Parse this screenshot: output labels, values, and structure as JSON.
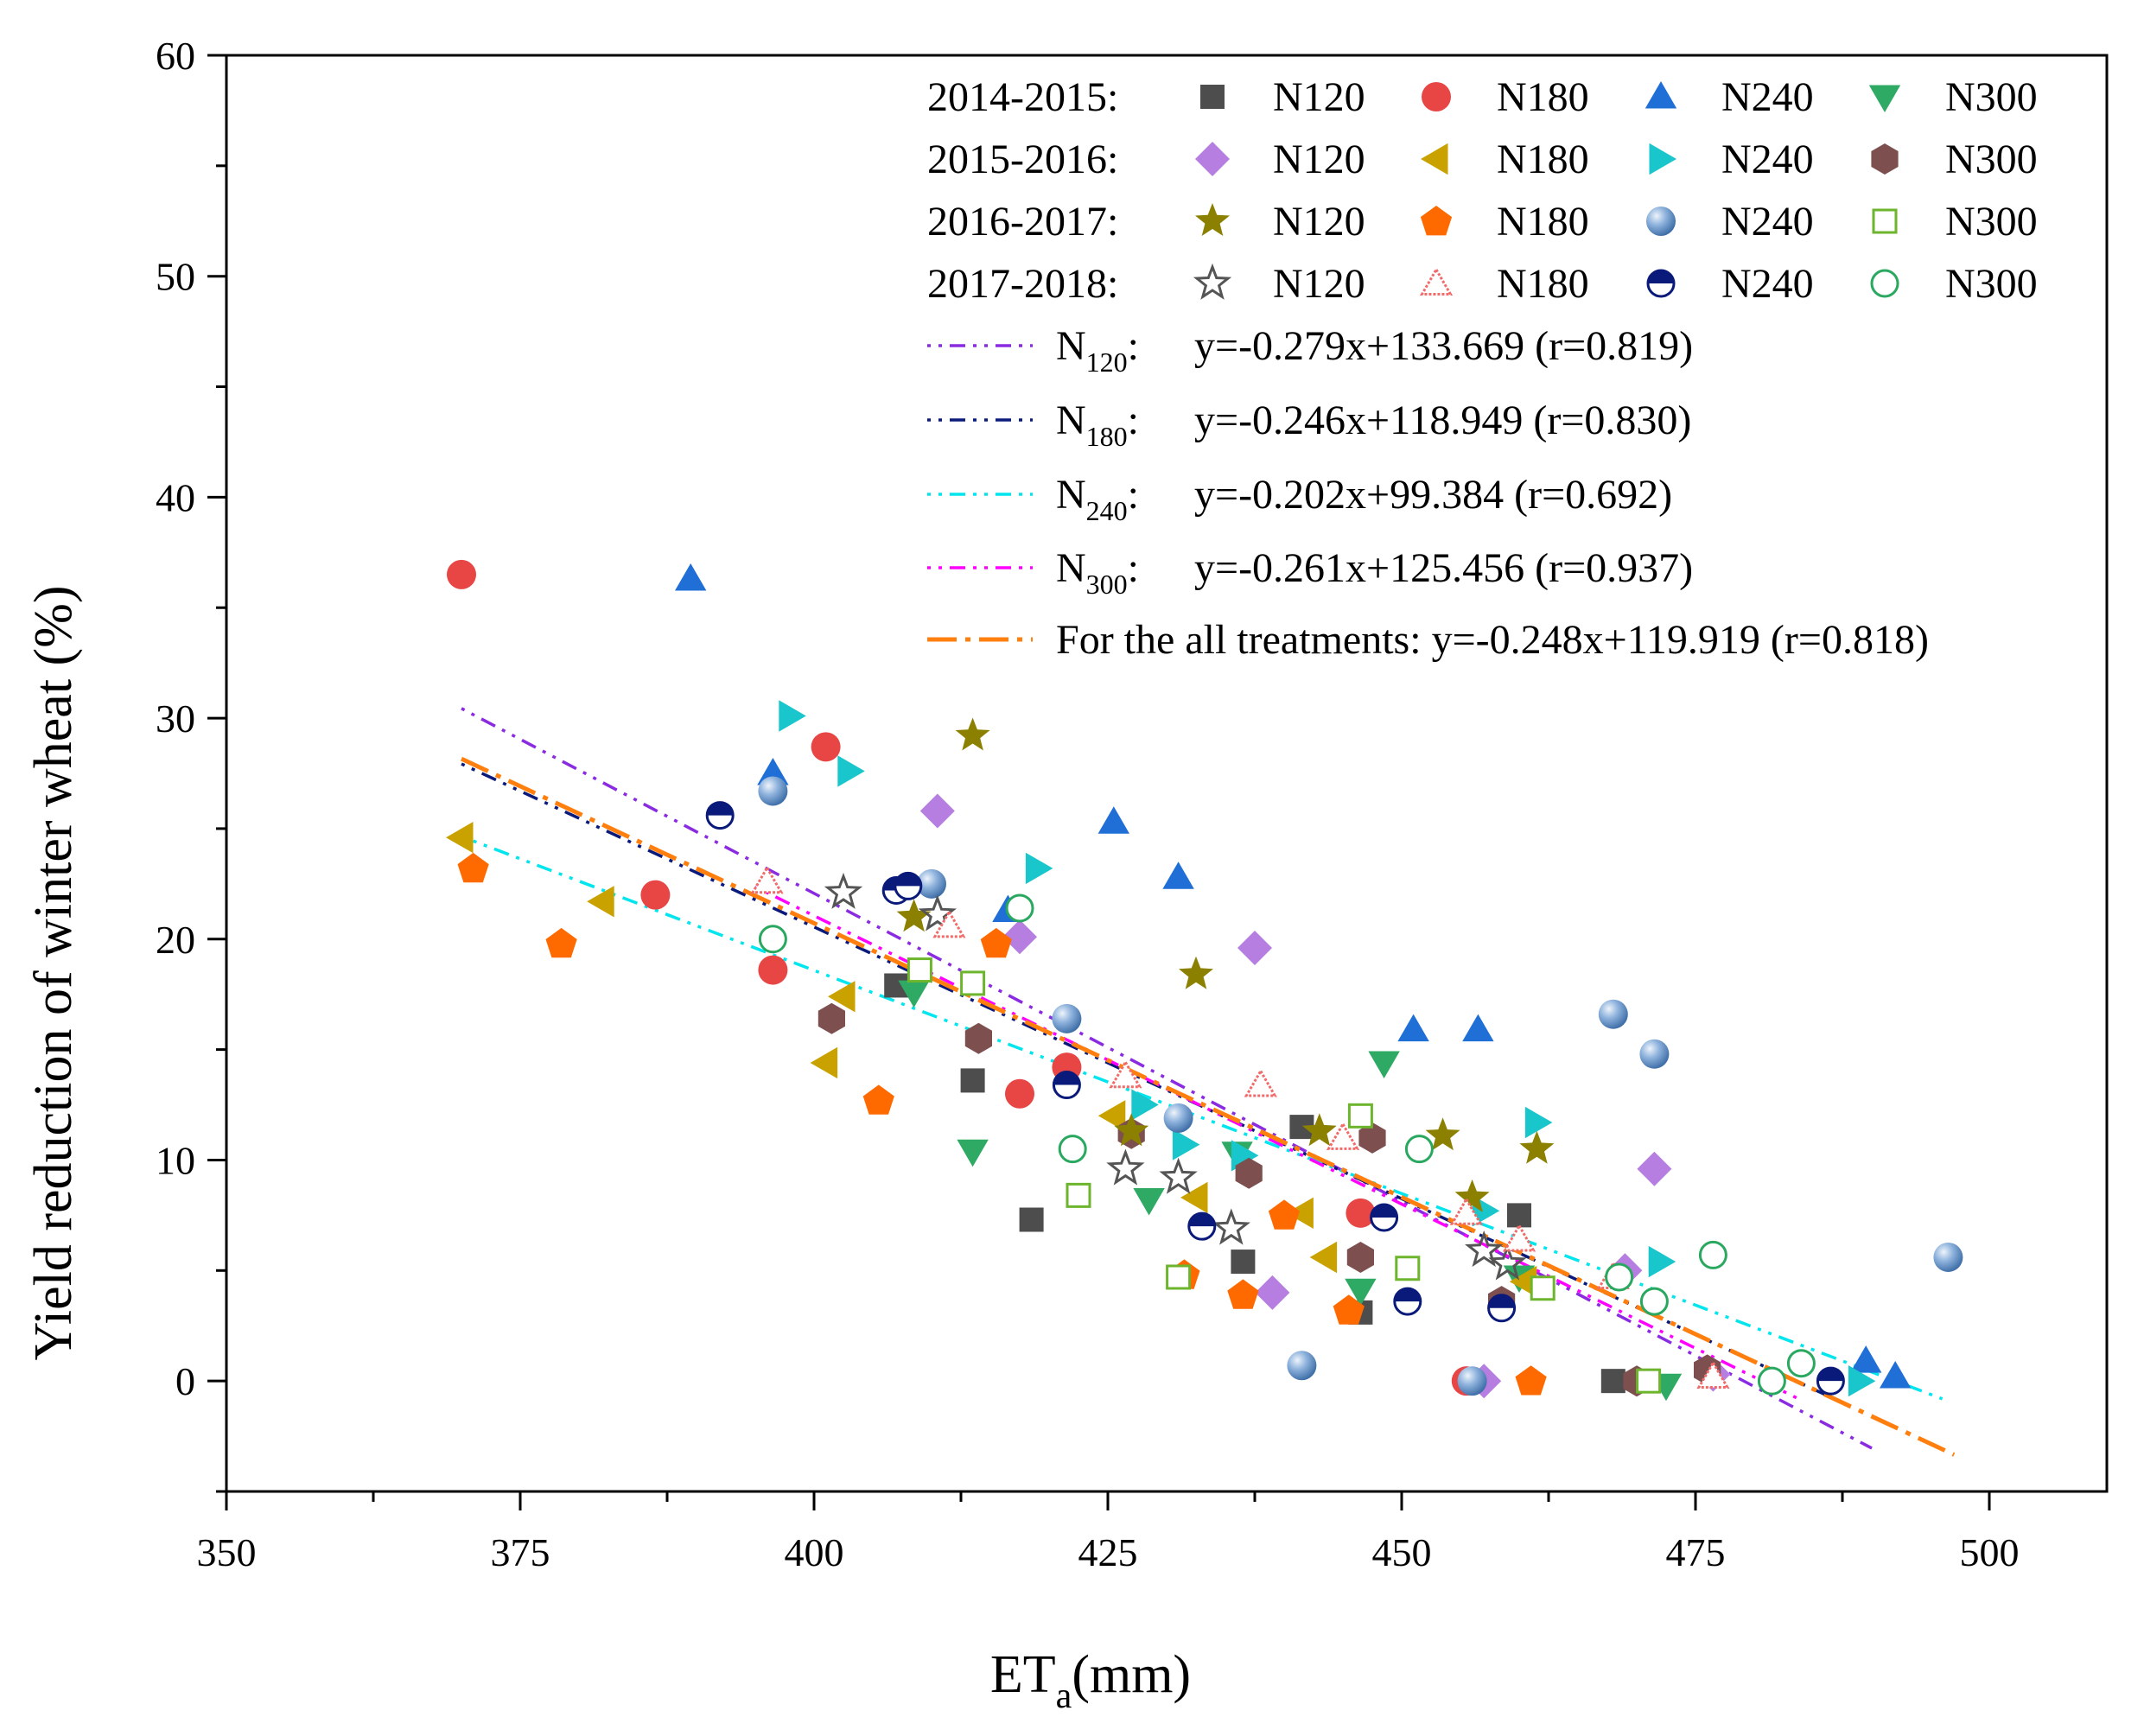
{
  "chart_data": {
    "type": "scatter",
    "title": "",
    "xlabel": {
      "main": "ET",
      "sub": "a",
      "rest": "(mm)"
    },
    "ylabel": "Yield reduction of winter wheat (%)",
    "xlim": [
      350,
      510
    ],
    "ylim": [
      -5,
      60
    ],
    "xticks": [
      350,
      375,
      400,
      425,
      450,
      475,
      500
    ],
    "yticks": [
      0,
      10,
      20,
      30,
      40,
      50,
      60
    ],
    "legend_position": "top-right",
    "legend_rows": [
      {
        "label": "2014-2015:",
        "entries": [
          {
            "key": "s1415_120",
            "label": "N120"
          },
          {
            "key": "s1415_180",
            "label": "N180"
          },
          {
            "key": "s1415_240",
            "label": "N240"
          },
          {
            "key": "s1415_300",
            "label": "N300"
          }
        ]
      },
      {
        "label": "2015-2016:",
        "entries": [
          {
            "key": "s1516_120",
            "label": "N120"
          },
          {
            "key": "s1516_180",
            "label": "N180"
          },
          {
            "key": "s1516_240",
            "label": "N240"
          },
          {
            "key": "s1516_300",
            "label": "N300"
          }
        ]
      },
      {
        "label": "2016-2017:",
        "entries": [
          {
            "key": "s1617_120",
            "label": "N120"
          },
          {
            "key": "s1617_180",
            "label": "N180"
          },
          {
            "key": "s1617_240",
            "label": "N240"
          },
          {
            "key": "s1617_300",
            "label": "N300"
          }
        ]
      },
      {
        "label": "2017-2018:",
        "entries": [
          {
            "key": "s1718_120",
            "label": "N120"
          },
          {
            "key": "s1718_180",
            "label": "N180"
          },
          {
            "key": "s1718_240",
            "label": "N240"
          },
          {
            "key": "s1718_300",
            "label": "N300"
          }
        ]
      }
    ],
    "series": [
      {
        "key": "s1415_120",
        "name": "2014-2015 N120",
        "marker": "square",
        "color": "#4d4d4d",
        "points": [
          [
            407,
            17.9
          ],
          [
            413.5,
            13.6
          ],
          [
            418.5,
            7.3
          ],
          [
            436.5,
            5.4
          ],
          [
            441.5,
            11.5
          ],
          [
            446.5,
            3.1
          ],
          [
            460,
            7.5
          ],
          [
            468,
            0
          ]
        ]
      },
      {
        "key": "s1415_180",
        "name": "2014-2015 N180",
        "marker": "circle",
        "color": "#e84545",
        "points": [
          [
            370,
            36.5
          ],
          [
            386.5,
            22
          ],
          [
            396.5,
            18.6
          ],
          [
            401,
            28.7
          ],
          [
            417.5,
            13
          ],
          [
            421.5,
            14.2
          ],
          [
            446.5,
            7.6
          ],
          [
            455.5,
            0
          ]
        ]
      },
      {
        "key": "s1415_240",
        "name": "2014-2015 N240",
        "marker": "triangle-up",
        "color": "#1f6fd6",
        "points": [
          [
            389.5,
            36.3
          ],
          [
            396.5,
            27.5
          ],
          [
            416.5,
            21.3
          ],
          [
            425.5,
            25.3
          ],
          [
            431,
            22.8
          ],
          [
            451,
            15.9
          ],
          [
            456.5,
            15.9
          ],
          [
            489.5,
            0.9
          ],
          [
            492,
            0.2
          ]
        ]
      },
      {
        "key": "s1415_300",
        "name": "2014-2015 N300",
        "marker": "triangle-down",
        "color": "#2eaa64",
        "points": [
          [
            408.5,
            17.6
          ],
          [
            413.5,
            10.4
          ],
          [
            428.5,
            8.2
          ],
          [
            436,
            10.3
          ],
          [
            446.5,
            4.1
          ],
          [
            448.5,
            14.4
          ],
          [
            460,
            4.7
          ],
          [
            472.5,
            -0.2
          ]
        ]
      },
      {
        "key": "s1516_120",
        "name": "2015-2016 N120",
        "marker": "diamond",
        "color": "#b57ee0",
        "points": [
          [
            410.5,
            25.8
          ],
          [
            417.5,
            20.1
          ],
          [
            437.5,
            19.6
          ],
          [
            439,
            4
          ],
          [
            457,
            0
          ],
          [
            469,
            5
          ],
          [
            471.5,
            9.6
          ],
          [
            476.5,
            0.3
          ]
        ]
      },
      {
        "key": "s1516_180",
        "name": "2015-2016 N180",
        "marker": "triangle-left",
        "color": "#c9a200",
        "points": [
          [
            370,
            24.6
          ],
          [
            382,
            21.7
          ],
          [
            401,
            14.4
          ],
          [
            402.5,
            17.4
          ],
          [
            425.5,
            12
          ],
          [
            432.5,
            8.3
          ],
          [
            441.5,
            7.6
          ],
          [
            443.5,
            5.6
          ],
          [
            460.5,
            4.5
          ]
        ]
      },
      {
        "key": "s1516_240",
        "name": "2015-2016 N240",
        "marker": "triangle-right",
        "color": "#18c6cc",
        "points": [
          [
            398,
            30.1
          ],
          [
            403,
            27.6
          ],
          [
            419,
            23.2
          ],
          [
            428,
            12.5
          ],
          [
            431.5,
            10.7
          ],
          [
            436.5,
            10.2
          ],
          [
            457,
            7.7
          ],
          [
            461.5,
            11.7
          ],
          [
            472,
            5.4
          ],
          [
            489,
            0
          ]
        ]
      },
      {
        "key": "s1516_300",
        "name": "2015-2016 N300",
        "marker": "hexagon",
        "color": "#7d4f4f",
        "points": [
          [
            401.5,
            16.4
          ],
          [
            414,
            15.5
          ],
          [
            427,
            11.2
          ],
          [
            437,
            9.4
          ],
          [
            446.5,
            5.6
          ],
          [
            447.5,
            11
          ],
          [
            458.5,
            3.6
          ],
          [
            470,
            0
          ],
          [
            476,
            0.5
          ]
        ]
      },
      {
        "key": "s1617_120",
        "name": "2016-2017 N120",
        "marker": "star",
        "color": "#8b8000",
        "points": [
          [
            408.5,
            21
          ],
          [
            413.5,
            29.2
          ],
          [
            427,
            11.3
          ],
          [
            432.5,
            18.4
          ],
          [
            443,
            11.3
          ],
          [
            453.5,
            11.1
          ],
          [
            456,
            8.3
          ],
          [
            461.5,
            10.5
          ]
        ]
      },
      {
        "key": "s1617_180",
        "name": "2016-2017 N180",
        "marker": "pentagon",
        "color": "#ff6a00",
        "points": [
          [
            371,
            23.2
          ],
          [
            378.5,
            19.8
          ],
          [
            405.5,
            12.7
          ],
          [
            415.5,
            19.8
          ],
          [
            431.5,
            4.8
          ],
          [
            436.5,
            3.9
          ],
          [
            440,
            7.5
          ],
          [
            445.5,
            3.2
          ],
          [
            461,
            0
          ]
        ]
      },
      {
        "key": "s1617_240",
        "name": "2016-2017 N240",
        "marker": "sphere",
        "color": "#7fa8d8",
        "points": [
          [
            396.5,
            26.7
          ],
          [
            410,
            22.5
          ],
          [
            421.5,
            16.4
          ],
          [
            431,
            11.9
          ],
          [
            441.5,
            0.7
          ],
          [
            456,
            0
          ],
          [
            468,
            16.6
          ],
          [
            471.5,
            14.8
          ],
          [
            496.5,
            5.6
          ]
        ]
      },
      {
        "key": "s1617_300",
        "name": "2016-2017 N300",
        "marker": "open-square",
        "color": "#6cb52d",
        "points": [
          [
            409,
            18.6
          ],
          [
            413.5,
            18
          ],
          [
            422.5,
            8.4
          ],
          [
            431,
            4.7
          ],
          [
            446.5,
            12
          ],
          [
            450.5,
            5.1
          ],
          [
            462,
            4.2
          ],
          [
            471,
            0
          ]
        ]
      },
      {
        "key": "s1718_120",
        "name": "2017-2018 N120",
        "marker": "open-star",
        "color": "#555555",
        "points": [
          [
            402.5,
            22.1
          ],
          [
            410.5,
            21.1
          ],
          [
            426.5,
            9.6
          ],
          [
            431,
            9.2
          ],
          [
            435.5,
            6.9
          ],
          [
            457,
            5.9
          ],
          [
            459,
            5.3
          ]
        ]
      },
      {
        "key": "s1718_180",
        "name": "2017-2018 N180",
        "marker": "open-triangle",
        "color": "#f26b6b",
        "points": [
          [
            396,
            22.6
          ],
          [
            411.5,
            20.6
          ],
          [
            426.5,
            13.8
          ],
          [
            438,
            13.4
          ],
          [
            445,
            11
          ],
          [
            455.5,
            7.6
          ],
          [
            460,
            6.4
          ],
          [
            468,
            4.7
          ],
          [
            476.5,
            0.2
          ]
        ]
      },
      {
        "key": "s1718_240",
        "name": "2017-2018 N240",
        "marker": "half-circle",
        "color": "#0a1a7a",
        "points": [
          [
            392,
            25.6
          ],
          [
            407,
            22.2
          ],
          [
            408,
            22.4
          ],
          [
            421.5,
            13.4
          ],
          [
            433,
            7
          ],
          [
            448.5,
            7.4
          ],
          [
            450.5,
            3.6
          ],
          [
            458.5,
            3.3
          ],
          [
            486.5,
            0
          ]
        ]
      },
      {
        "key": "s1718_300",
        "name": "2017-2018 N300",
        "marker": "open-circle",
        "color": "#2aa860",
        "points": [
          [
            396.5,
            20
          ],
          [
            417.5,
            21.4
          ],
          [
            422,
            10.5
          ],
          [
            451.5,
            10.5
          ],
          [
            468.5,
            4.7
          ],
          [
            471.5,
            3.6
          ],
          [
            476.5,
            5.7
          ],
          [
            481.5,
            0
          ],
          [
            484,
            0.8
          ]
        ]
      }
    ],
    "fits": [
      {
        "key": "fit120",
        "label_main": "N",
        "label_sub": "120",
        "equation": "y=-0.279x+133.669 (r=0.819)",
        "color": "#8a2be2",
        "dash": "4 9 4 9 18 9",
        "x_range": [
          370,
          490
        ]
      },
      {
        "key": "fit180",
        "label_main": "N",
        "label_sub": "180",
        "equation": "y=-0.246x+118.949 (r=0.830)",
        "color": "#0a1a7a",
        "dash": "4 9 4 9 18 9",
        "x_range": [
          370,
          486
        ]
      },
      {
        "key": "fit240",
        "label_main": "N",
        "label_sub": "240",
        "equation": "y=-0.202x+99.384 (r=0.692)",
        "color": "#00e5ee",
        "dash": "4 9 4 9 18 9",
        "x_range": [
          371,
          496
        ]
      },
      {
        "key": "fit300",
        "label_main": "N",
        "label_sub": "300",
        "equation": "y=-0.261x+125.456 (r=0.937)",
        "color": "#ff00ff",
        "dash": "4 9 4 9 18 9",
        "x_range": [
          395,
          484
        ]
      },
      {
        "key": "fitall",
        "label_main": "For the all treatments:",
        "label_sub": "",
        "equation": "y=-0.248x+119.919 (r=0.818)",
        "color": "#ff7f0e",
        "dash": "34 10 6 10",
        "x_range": [
          370,
          497
        ]
      }
    ]
  }
}
